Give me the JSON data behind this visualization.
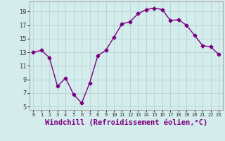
{
  "x": [
    0,
    1,
    2,
    3,
    4,
    5,
    6,
    7,
    8,
    9,
    10,
    11,
    12,
    13,
    14,
    15,
    16,
    17,
    18,
    19,
    20,
    21,
    22,
    23
  ],
  "y": [
    13.0,
    13.3,
    12.2,
    8.0,
    9.2,
    6.8,
    5.5,
    8.5,
    12.5,
    13.3,
    15.2,
    17.2,
    17.5,
    18.7,
    19.3,
    19.5,
    19.3,
    17.7,
    17.8,
    17.0,
    15.5,
    14.0,
    13.8,
    12.7
  ],
  "line_color": "#7b0080",
  "marker": "D",
  "marker_size": 2.5,
  "bg_color": "#d4ecec",
  "grid_color": "#b8d8d8",
  "xlabel": "Windchill (Refroidissement éolien,°C)",
  "xlabel_fontsize": 7.5,
  "ylabel_ticks": [
    5,
    7,
    9,
    11,
    13,
    15,
    17,
    19
  ],
  "xtick_labels": [
    "0",
    "1",
    "2",
    "3",
    "4",
    "5",
    "6",
    "7",
    "8",
    "9",
    "10",
    "11",
    "12",
    "13",
    "14",
    "15",
    "16",
    "17",
    "18",
    "19",
    "20",
    "21",
    "22",
    "23"
  ],
  "ylim": [
    4.5,
    20.5
  ],
  "xlim": [
    -0.5,
    23.5
  ],
  "spine_color": "#aaaaaa"
}
